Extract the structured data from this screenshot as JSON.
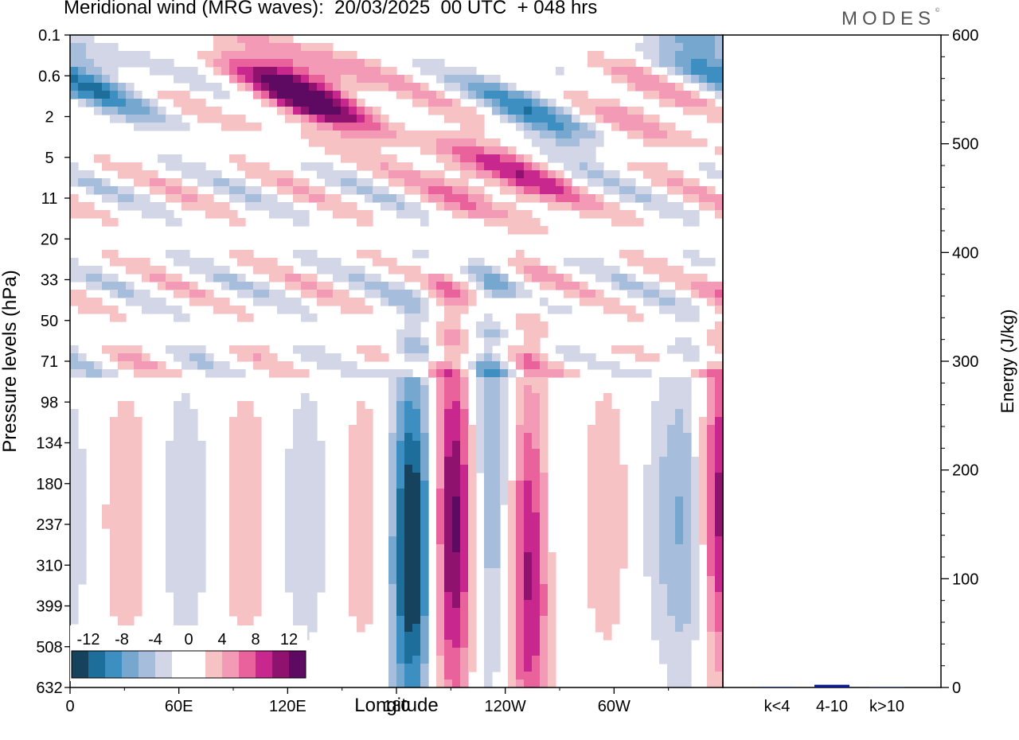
{
  "title": "Meridional wind (MRG waves):  20/03/2025  00 UTC  + 048 hrs",
  "logo": "MODES",
  "logo_mark": "©",
  "chart_data": [
    {
      "type": "heatmap",
      "title": "Meridional wind (MRG waves):  20/03/2025  00 UTC  + 048 hrs",
      "xlabel": "Longitude",
      "ylabel": "Pressure levels (hPa)",
      "x_ticks": [
        "0",
        "60E",
        "120E",
        "180",
        "120W",
        "60W"
      ],
      "x_tick_degrees": [
        0,
        60,
        120,
        180,
        240,
        300
      ],
      "xlim": [
        0,
        360
      ],
      "y_ticks": [
        "0.1",
        "0.6",
        "2",
        "5",
        "11",
        "20",
        "33",
        "50",
        "71",
        "98",
        "134",
        "180",
        "237",
        "310",
        "399",
        "508",
        "632"
      ],
      "colorbar": {
        "labels": [
          "-12",
          "-8",
          "-4",
          "0",
          "4",
          "8",
          "12"
        ],
        "colors": [
          "#17425e",
          "#1e6e9c",
          "#3d8fc2",
          "#76a7cf",
          "#a6bedc",
          "#d2d6e7",
          "#ffffff",
          "#ffffff",
          "#f7c2c4",
          "#f39ab7",
          "#e9629c",
          "#c8288d",
          "#8f126f",
          "#5e0a63"
        ]
      },
      "features": [
        {
          "sign": 1,
          "lon": 210,
          "p": 237,
          "amp": 14
        },
        {
          "sign": -1,
          "lon": 188,
          "p": 290,
          "amp": 13
        },
        {
          "sign": -1,
          "lon": 232,
          "p": 200,
          "amp": 10
        },
        {
          "sign": 1,
          "lon": 254,
          "p": 300,
          "amp": 13
        },
        {
          "sign": 1,
          "lon": 358,
          "p": 200,
          "amp": 8
        },
        {
          "sign": -1,
          "lon": 343,
          "p": 240,
          "amp": 5
        },
        {
          "sign": 1,
          "lon": 130,
          "p": 0.9,
          "amp": 12
        },
        {
          "sign": -1,
          "lon": 8,
          "p": 0.6,
          "amp": 7
        },
        {
          "sign": 1,
          "lon": 236,
          "p": 7,
          "amp": 8
        },
        {
          "sign": -1,
          "lon": 262,
          "p": 2,
          "amp": 7
        },
        {
          "sign": -1,
          "lon": 352,
          "p": 0.3,
          "amp": 7
        },
        {
          "sign": 1,
          "lon": 312,
          "p": 1.5,
          "amp": 6
        }
      ]
    },
    {
      "type": "bar",
      "ylabel": "Energy (J/kg)",
      "ylim": [
        0,
        600
      ],
      "y_ticks": [
        "0",
        "100",
        "200",
        "300",
        "400",
        "500",
        "600"
      ],
      "categories": [
        "k<4",
        "4-10",
        "k>10"
      ],
      "values": [
        0.5,
        2.5,
        0.3
      ],
      "bar_color": "#0a1a8c"
    }
  ]
}
